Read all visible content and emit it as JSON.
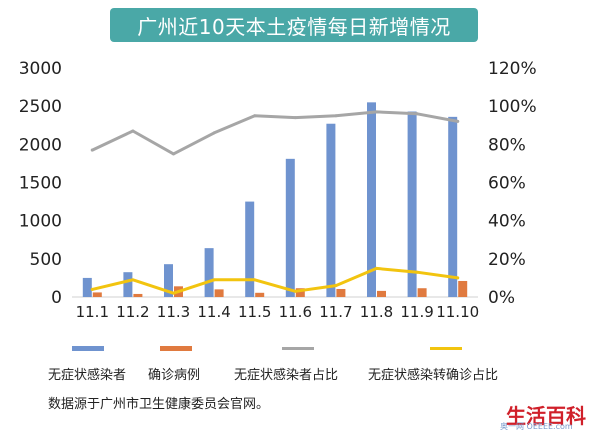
{
  "title": "广州近10天本土疫情每日新增情况",
  "source_note": "数据源于广州市卫生健康委员会官网。",
  "watermark": {
    "text": "生活百科",
    "subtext": "奥一网 OEEEE.com"
  },
  "colors": {
    "asymptomatic": "#6f93cf",
    "confirmed": "#e07a3f",
    "asym_ratio": "#a6a6a6",
    "converted_ratio": "#f2c40f",
    "title_bg": "#4aa8a7"
  },
  "chart_data": {
    "type": "bar",
    "categories": [
      "11.1",
      "11.2",
      "11.3",
      "11.4",
      "11.5",
      "11.6",
      "11.7",
      "11.8",
      "11.9",
      "11.10"
    ],
    "y_left": {
      "ticks": [
        "0",
        "500",
        "1000",
        "1500",
        "2000",
        "2500",
        "3000"
      ],
      "ylim": [
        0,
        3000
      ]
    },
    "y_right": {
      "ticks": [
        "0%",
        "20%",
        "40%",
        "60%",
        "80%",
        "100%",
        "120%"
      ],
      "ylim": [
        0,
        1.2
      ]
    },
    "grid": false,
    "legend_position": "bottom",
    "series": [
      {
        "name": "无症状感染者",
        "type": "bar",
        "axis": "left",
        "values": [
          250,
          325,
          430,
          640,
          1250,
          1810,
          2270,
          2550,
          2430,
          2360
        ]
      },
      {
        "name": "确诊病例",
        "type": "bar",
        "axis": "left",
        "values": [
          60,
          40,
          140,
          100,
          55,
          115,
          105,
          80,
          115,
          210
        ]
      },
      {
        "name": "无症状感染者占比",
        "type": "line",
        "axis": "right",
        "values": [
          0.77,
          0.87,
          0.75,
          0.86,
          0.95,
          0.94,
          0.95,
          0.97,
          0.96,
          0.92
        ]
      },
      {
        "name": "无症状感染转确诊占比",
        "type": "line",
        "axis": "right",
        "values": [
          0.04,
          0.09,
          0.02,
          0.09,
          0.09,
          0.03,
          0.06,
          0.15,
          0.13,
          0.1
        ]
      }
    ]
  }
}
